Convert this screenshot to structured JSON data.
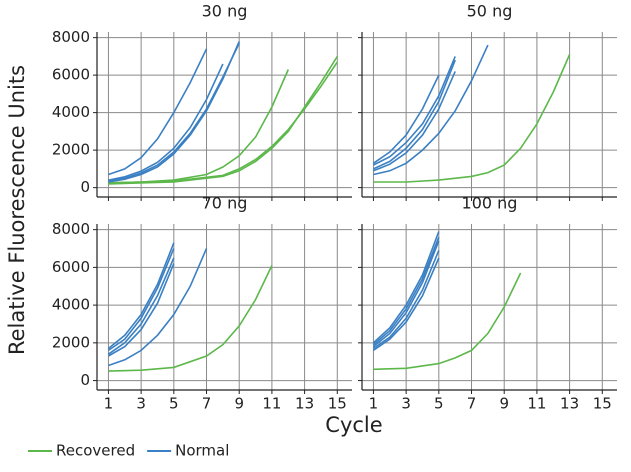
{
  "chart_data": {
    "type": "line",
    "xlabel": "Cycle",
    "ylabel": "Relative Fluorescence Units",
    "xlim": [
      0.3,
      15.9
    ],
    "ylim": [
      -500,
      8300
    ],
    "xticks": [
      1,
      3,
      5,
      7,
      9,
      11,
      13,
      15
    ],
    "yticks": [
      0,
      2000,
      4000,
      6000,
      8000
    ],
    "grid": true,
    "legend": "bottom-left",
    "series": [
      {
        "name": "Recovered",
        "color": "#5cb84a"
      },
      {
        "name": "Normal",
        "color": "#3b80c3"
      }
    ],
    "panels": [
      {
        "title": "30 ng",
        "lines": [
          [
            {
              "x": [
                1,
                3,
                5,
                7,
                8,
                9,
                10,
                11,
                12
              ],
              "values": [
                250,
                300,
                400,
                700,
                1100,
                1700,
                2700,
                4300,
                6300
              ]
            },
            {
              "x": [
                1,
                5,
                8,
                9,
                10,
                11,
                12,
                13,
                14,
                15
              ],
              "values": [
                200,
                300,
                600,
                900,
                1400,
                2100,
                3000,
                4300,
                5600,
                7000
              ]
            },
            {
              "x": [
                1,
                5,
                8,
                9,
                10,
                11,
                12,
                13,
                14,
                15
              ],
              "values": [
                250,
                350,
                650,
                1000,
                1500,
                2200,
                3100,
                4200,
                5400,
                6700
              ]
            }
          ],
          [
            {
              "x": [
                1,
                2,
                3,
                4,
                5,
                6,
                7
              ],
              "values": [
                700,
                1000,
                1600,
                2600,
                4000,
                5600,
                7400
              ]
            },
            {
              "x": [
                1,
                2,
                3,
                4,
                5,
                6,
                7,
                8,
                9
              ],
              "values": [
                300,
                450,
                700,
                1100,
                1800,
                2800,
                4100,
                5800,
                7800
              ]
            },
            {
              "x": [
                1,
                2,
                3,
                4,
                5,
                6,
                7,
                8,
                9
              ],
              "values": [
                350,
                500,
                780,
                1200,
                1900,
                2900,
                4200,
                5900,
                7700
              ]
            },
            {
              "x": [
                1,
                2,
                3,
                4,
                5,
                6,
                7,
                8
              ],
              "values": [
                400,
                580,
                880,
                1350,
                2100,
                3200,
                4700,
                6600
              ]
            }
          ]
        ]
      },
      {
        "title": "50 ng",
        "lines": [
          [
            {
              "x": [
                1,
                3,
                5,
                7,
                8,
                9,
                10,
                11,
                12,
                13
              ],
              "values": [
                300,
                300,
                400,
                600,
                800,
                1200,
                2100,
                3400,
                5100,
                7100
              ]
            }
          ],
          [
            {
              "x": [
                1,
                2,
                3,
                4,
                5,
                6
              ],
              "values": [
                1000,
                1400,
                2100,
                3100,
                4600,
                6800
              ]
            },
            {
              "x": [
                1,
                2,
                3,
                4,
                5,
                6
              ],
              "values": [
                1200,
                1650,
                2400,
                3400,
                4900,
                7000
              ]
            },
            {
              "x": [
                1,
                2,
                3,
                4,
                5
              ],
              "values": [
                1300,
                1900,
                2800,
                4200,
                6000
              ]
            },
            {
              "x": [
                1,
                2,
                3,
                4,
                5,
                6
              ],
              "values": [
                900,
                1250,
                1850,
                2800,
                4200,
                6200
              ]
            },
            {
              "x": [
                1,
                2,
                3,
                4,
                5,
                6,
                7,
                8
              ],
              "values": [
                700,
                900,
                1300,
                2000,
                2900,
                4100,
                5700,
                7600
              ]
            }
          ]
        ]
      },
      {
        "title": "70 ng",
        "lines": [
          [
            {
              "x": [
                1,
                3,
                5,
                7,
                8,
                9,
                10,
                11
              ],
              "values": [
                500,
                550,
                700,
                1300,
                1900,
                2900,
                4300,
                6100
              ]
            }
          ],
          [
            {
              "x": [
                1,
                2,
                3,
                4,
                5
              ],
              "values": [
                1600,
                2200,
                3300,
                4900,
                7000
              ]
            },
            {
              "x": [
                1,
                2,
                3,
                4,
                5
              ],
              "values": [
                1400,
                2000,
                3000,
                4500,
                6500
              ]
            },
            {
              "x": [
                1,
                2,
                3,
                4,
                5,
                6
              ],
              "values": [
                1700,
                2400,
                3500,
                5100,
                7300,
                null
              ]
            },
            {
              "x": [
                1,
                2,
                3,
                4,
                5
              ],
              "values": [
                1300,
                1800,
                2700,
                4100,
                6200
              ]
            },
            {
              "x": [
                1,
                2,
                3,
                4,
                5,
                6,
                7
              ],
              "values": [
                800,
                1100,
                1600,
                2400,
                3500,
                5000,
                7000
              ]
            }
          ]
        ]
      },
      {
        "title": "100 ng",
        "lines": [
          [
            {
              "x": [
                1,
                3,
                5,
                6,
                7,
                8,
                9,
                10
              ],
              "values": [
                600,
                650,
                900,
                1200,
                1600,
                2500,
                3900,
                5700
              ]
            }
          ],
          [
            {
              "x": [
                1,
                2,
                3,
                4,
                5
              ],
              "values": [
                1800,
                2500,
                3600,
                5200,
                7400
              ]
            },
            {
              "x": [
                1,
                2,
                3,
                4,
                5
              ],
              "values": [
                2000,
                2800,
                4000,
                5600,
                7900
              ]
            },
            {
              "x": [
                1,
                2,
                3,
                4,
                5
              ],
              "values": [
                1700,
                2300,
                3300,
                4800,
                6900
              ]
            },
            {
              "x": [
                1,
                2,
                3,
                4,
                5
              ],
              "values": [
                1900,
                2650,
                3800,
                5400,
                7600
              ]
            },
            {
              "x": [
                1,
                2,
                3,
                4,
                5
              ],
              "values": [
                1600,
                2200,
                3100,
                4500,
                6500
              ]
            }
          ]
        ]
      }
    ]
  }
}
